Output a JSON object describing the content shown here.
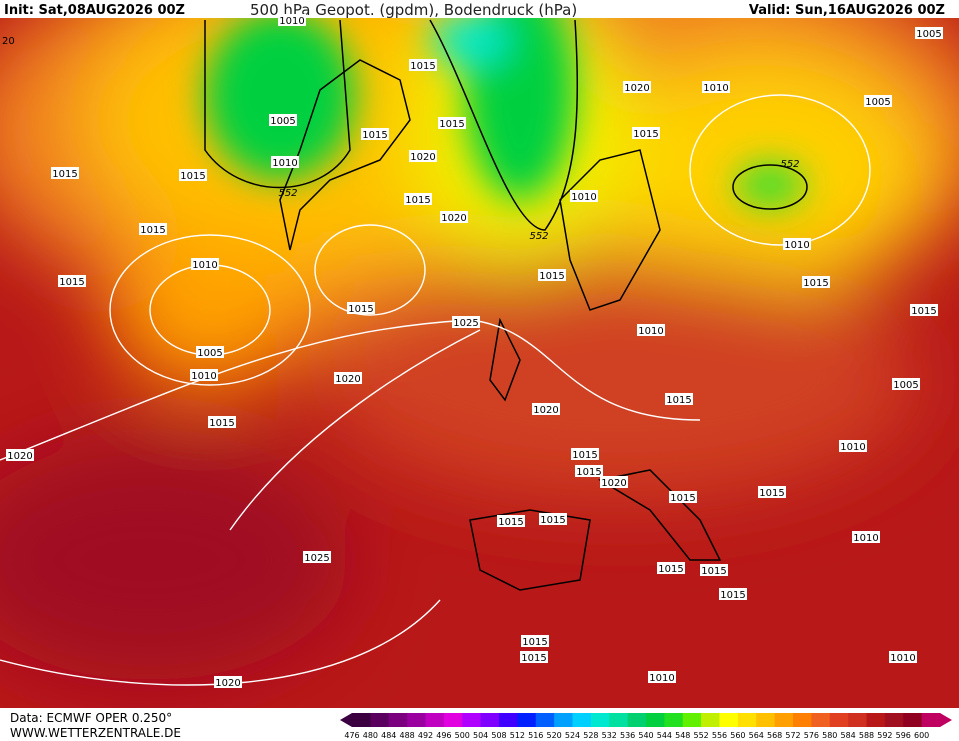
{
  "header": {
    "init": "Init: Sat,08AUG2026 00Z",
    "title": "500 hPa Geopot. (gpdm), Bodendruck (hPa)",
    "valid": "Valid: Sun,16AUG2026 00Z"
  },
  "footer": {
    "source": "Data: ECMWF OPER 0.250°",
    "website": "WWW.WETTERZENTRALE.DE"
  },
  "edge_label": "20",
  "isobar_labels": [
    "1010",
    "1015",
    "1005",
    "1010",
    "1015",
    "1015",
    "1020",
    "1015",
    "1015",
    "1015",
    "1015",
    "1010",
    "1015",
    "1005",
    "1010",
    "1015",
    "1020",
    "1025",
    "1020",
    "1015",
    "1020",
    "1025",
    "1020",
    "1020",
    "1010",
    "1005",
    "1015",
    "1010",
    "1010",
    "1015",
    "1015",
    "1010",
    "1015",
    "1020",
    "1015",
    "1005",
    "1010",
    "1015",
    "1015",
    "1020",
    "1015",
    "1015",
    "1015",
    "1015",
    "1010",
    "1015",
    "1015",
    "1015",
    "1015",
    "1015",
    "1010",
    "1010",
    "1005"
  ],
  "height_labels": [
    "552",
    "552",
    "552"
  ],
  "colorbar": {
    "values": [
      476,
      480,
      484,
      488,
      492,
      496,
      500,
      504,
      508,
      512,
      516,
      520,
      524,
      528,
      532,
      536,
      540,
      544,
      548,
      552,
      556,
      560,
      564,
      568,
      572,
      576,
      580,
      584,
      588,
      592,
      596,
      600
    ],
    "colors": [
      "#3a0040",
      "#5a005f",
      "#7a007f",
      "#9a009f",
      "#c000c0",
      "#e000e0",
      "#b000ff",
      "#8000ff",
      "#4000ff",
      "#0020ff",
      "#0060ff",
      "#00a0ff",
      "#00d0ff",
      "#00e8d0",
      "#00e0a0",
      "#00d070",
      "#00d040",
      "#20e020",
      "#60f000",
      "#c0f000",
      "#ffff00",
      "#ffe000",
      "#ffc000",
      "#ffa000",
      "#ff8000",
      "#f06020",
      "#e04020",
      "#d03020",
      "#b81818",
      "#a01020",
      "#900020",
      "#c00060"
    ]
  }
}
